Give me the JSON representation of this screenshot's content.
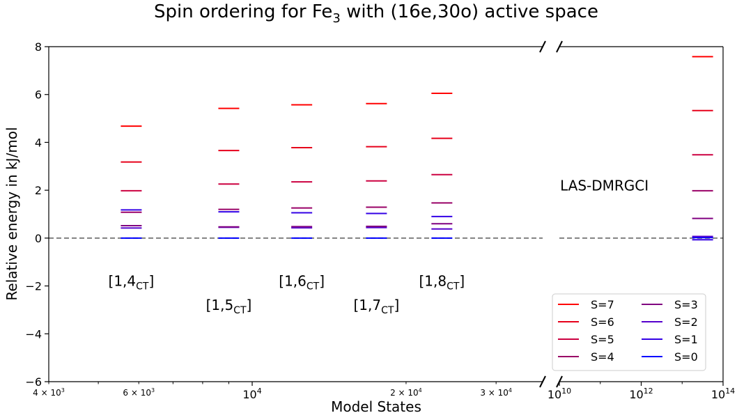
{
  "chart_data": {
    "type": "scatter",
    "title": {
      "main": "Spin ordering for Fe",
      "sub": "3",
      "rest": " with (16e,30o) active space"
    },
    "xlabel": "Model States",
    "ylabel": "Relative energy in kJ/mol",
    "ylim": [
      -6,
      8
    ],
    "yticks": [
      "−6",
      "−4",
      "−2",
      "0",
      "2",
      "4",
      "6",
      "8"
    ],
    "ytick_values": [
      -6,
      -4,
      -2,
      0,
      2,
      4,
      6,
      8
    ],
    "left_axis": {
      "scale": "log",
      "xlim": [
        4000,
        37000
      ],
      "major_ticks": [
        {
          "value": 10000,
          "base": "10",
          "exp": "4"
        }
      ],
      "minor_ticks": [
        {
          "value": 4000,
          "mant": "4",
          "exp": "3"
        },
        {
          "value": 6000,
          "mant": "6",
          "exp": "3"
        },
        {
          "value": 20000,
          "mant": "2",
          "exp": "4"
        },
        {
          "value": 30000,
          "mant": "3",
          "exp": "4"
        }
      ],
      "minor_unlabeled": [
        5000,
        7000,
        8000,
        9000
      ]
    },
    "right_axis": {
      "scale": "log",
      "xlim_exp": [
        10,
        14
      ],
      "ticks": [
        {
          "exp": 10,
          "label_base": "10",
          "label_exp": "10"
        },
        {
          "exp": 12,
          "label_base": "10",
          "label_exp": "12"
        },
        {
          "exp": 14,
          "label_base": "10",
          "label_exp": "14"
        }
      ]
    },
    "reference_line": {
      "y": 0,
      "style": "dashed"
    },
    "series_colors": {
      "S=7": "#ff0000",
      "S=6": "#e6001a",
      "S=5": "#cc0040",
      "S=4": "#990066",
      "S=3": "#800080",
      "S=2": "#5500cc",
      "S=1": "#3300e6",
      "S=0": "#0000ff"
    },
    "legend": {
      "placement": "lower-right",
      "entries": [
        "S=7",
        "S=6",
        "S=5",
        "S=4",
        "S=3",
        "S=2",
        "S=1",
        "S=0"
      ]
    },
    "groups": [
      {
        "x": 5800,
        "label_main": "[1,4",
        "label_sub": "CT",
        "label_close": "]",
        "label_y": -1.8,
        "levels": {
          "S=7": 4.68,
          "S=6": 3.18,
          "S=5": 1.98,
          "S=4": 1.08,
          "S=3": 0.52,
          "S=2": 0.42,
          "S=1": 1.18,
          "S=0": 0.0
        }
      },
      {
        "x": 9000,
        "label_main": "[1,5",
        "label_sub": "CT",
        "label_close": "]",
        "label_y": -2.8,
        "levels": {
          "S=7": 5.42,
          "S=6": 3.66,
          "S=5": 2.26,
          "S=4": 1.2,
          "S=3": 0.47,
          "S=2": 0.45,
          "S=1": 1.1,
          "S=0": 0.0
        }
      },
      {
        "x": 12500,
        "label_main": "[1,6",
        "label_sub": "CT",
        "label_close": "]",
        "label_y": -1.8,
        "levels": {
          "S=7": 5.57,
          "S=6": 3.78,
          "S=5": 2.35,
          "S=4": 1.26,
          "S=3": 0.48,
          "S=2": 0.43,
          "S=1": 1.06,
          "S=0": 0.0
        }
      },
      {
        "x": 17500,
        "label_main": "[1,7",
        "label_sub": "CT",
        "label_close": "]",
        "label_y": -2.8,
        "levels": {
          "S=7": 5.62,
          "S=6": 3.82,
          "S=5": 2.39,
          "S=4": 1.29,
          "S=3": 0.49,
          "S=2": 0.44,
          "S=1": 1.03,
          "S=0": 0.0
        }
      },
      {
        "x": 23500,
        "label_main": "[1,8",
        "label_sub": "CT",
        "label_close": "]",
        "label_y": -1.8,
        "levels": {
          "S=7": 6.05,
          "S=6": 4.17,
          "S=5": 2.65,
          "S=4": 1.47,
          "S=3": 0.6,
          "S=2": 0.38,
          "S=1": 0.9,
          "S=0": 0.0
        }
      },
      {
        "x_exp": 13.5,
        "panel": "right",
        "levels": {
          "S=7": 7.58,
          "S=6": 5.33,
          "S=5": 3.48,
          "S=4": 1.98,
          "S=3": 0.82,
          "S=2": 0.07,
          "S=1": -0.07,
          "S=0": 0.02
        }
      }
    ],
    "annotations": [
      {
        "text": "LAS-DMRGCI",
        "x_exp": 11.1,
        "y": 2.2
      }
    ]
  }
}
